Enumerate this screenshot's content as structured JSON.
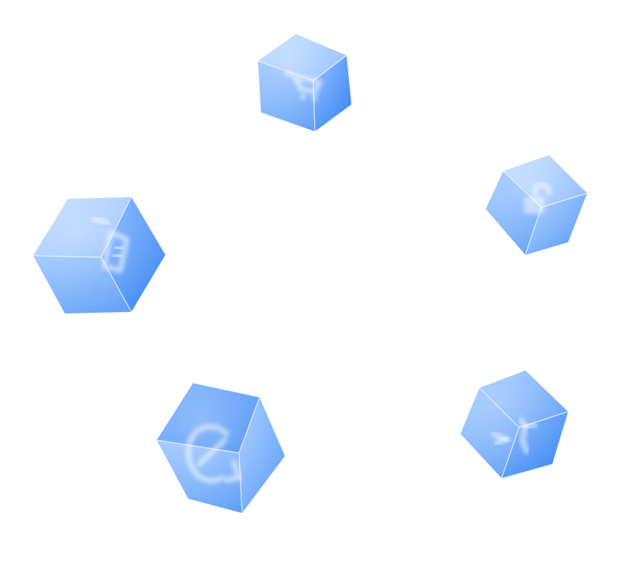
{
  "scene": {
    "background_color": "#ffffff",
    "cube_color_light": "#a9cdff",
    "cube_color_mid": "#7fb2ff",
    "cube_color_dark": "#3f8af2",
    "edge_color": "#e6f1ff"
  },
  "cubes": [
    {
      "id": "top",
      "icon": "cart-icon"
    },
    {
      "id": "left",
      "icon": "trash-icon"
    },
    {
      "id": "right",
      "icon": "lock-icon"
    },
    {
      "id": "bottom-left",
      "icon": "refresh-icon"
    },
    {
      "id": "bottom-right",
      "icon": "scissors-icon"
    }
  ]
}
